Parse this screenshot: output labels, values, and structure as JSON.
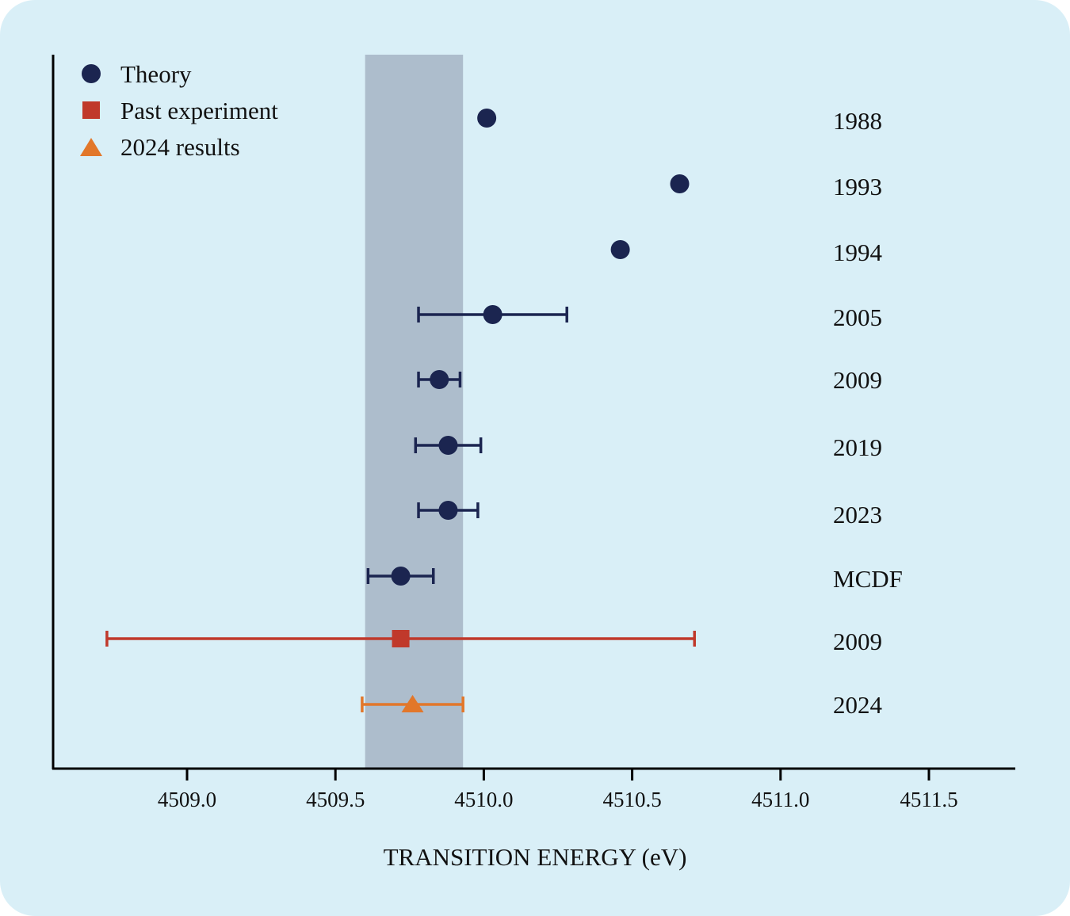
{
  "chart_data": {
    "type": "scatter",
    "title": "",
    "xlabel": "TRANSITION ENERGY (eV)",
    "ylabel": "",
    "xlim": [
      4508.55,
      4511.8
    ],
    "xticks": [
      4509.0,
      4509.5,
      4510.0,
      4510.5,
      4511.0,
      4511.5
    ],
    "xtick_labels": [
      "4509.0",
      "4509.5",
      "4510.0",
      "4510.5",
      "4511.0",
      "4511.5"
    ],
    "grid": false,
    "legend_position": "top-left",
    "legend": [
      {
        "name": "Theory",
        "marker": "circle",
        "color": "#1B2550"
      },
      {
        "name": "Past experiment",
        "marker": "square",
        "color": "#C0392B"
      },
      {
        "name": "2024 results",
        "marker": "triangle",
        "color": "#E2772A"
      }
    ],
    "band": {
      "x0": 4509.6,
      "x1": 4509.93,
      "color": "#ADBDCC"
    },
    "rows": [
      {
        "label": "1988",
        "series": "Theory",
        "value": 4510.01,
        "err": null
      },
      {
        "label": "1993",
        "series": "Theory",
        "value": 4510.66,
        "err": null
      },
      {
        "label": "1994",
        "series": "Theory",
        "value": 4510.46,
        "err": null
      },
      {
        "label": "2005",
        "series": "Theory",
        "value": 4510.03,
        "err": 0.25
      },
      {
        "label": "2009",
        "series": "Theory",
        "value": 4509.85,
        "err": 0.07
      },
      {
        "label": "2019",
        "series": "Theory",
        "value": 4509.88,
        "err": 0.11
      },
      {
        "label": "2023",
        "series": "Theory",
        "value": 4509.88,
        "err": 0.1
      },
      {
        "label": "MCDF",
        "series": "Theory",
        "value": 4509.72,
        "err": 0.11
      },
      {
        "label": "2009",
        "series": "Past experiment",
        "value": 4509.72,
        "err": 0.99
      },
      {
        "label": "2024",
        "series": "2024 results",
        "value": 4509.76,
        "err": 0.17
      }
    ]
  }
}
